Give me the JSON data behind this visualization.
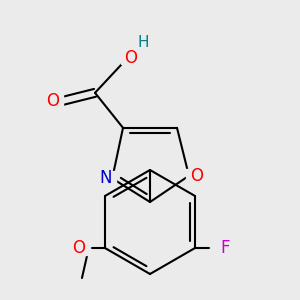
{
  "bg_color": "#ebebeb",
  "bond_color": "#000000",
  "bond_width": 1.5,
  "atom_colors": {
    "O": "#ff0000",
    "N": "#0000cd",
    "F": "#cc00cc",
    "C": "#000000",
    "H": "#008080"
  },
  "font_size": 12,
  "font_size_H": 11,
  "font_size_small": 10
}
